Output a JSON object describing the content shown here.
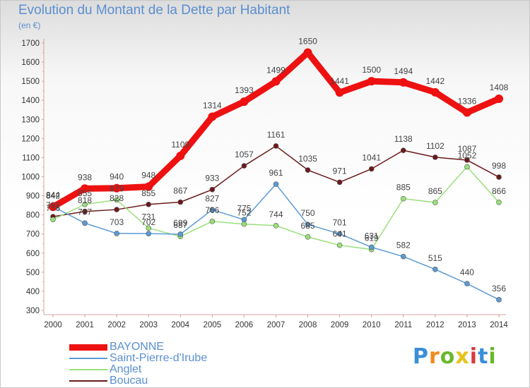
{
  "title": "Evolution du Montant de la Dette par Habitant",
  "subtitle": "(en €)",
  "brand": {
    "text": "Proxiti",
    "colors": [
      "#3a8fd8",
      "#f18a1c",
      "#6ab72d",
      "#e8c21a",
      "#d83a3a",
      "#3a8fd8",
      "#6ab72d"
    ]
  },
  "chart_data": {
    "type": "line",
    "x": [
      "2000",
      "2001",
      "2002",
      "2003",
      "2004",
      "2005",
      "2006",
      "2007",
      "2008",
      "2009",
      "2010",
      "2011",
      "2012",
      "2013",
      "2014"
    ],
    "ylim": [
      300,
      1700
    ],
    "yticks": [
      300,
      400,
      500,
      600,
      700,
      800,
      900,
      1000,
      1100,
      1200,
      1300,
      1400,
      1500,
      1600,
      1700
    ],
    "grid": false,
    "legend_position": "bottom-left",
    "series": [
      {
        "name": "BAYONNE",
        "color": "#ee1111",
        "values": [
          842,
          938,
          940,
          948,
          1109,
          1314,
          1393,
          1499,
          1650,
          1441,
          1500,
          1494,
          1442,
          1336,
          1408
        ]
      },
      {
        "name": "Saint-Pierre-d'Irube",
        "color": "#5b9bd5",
        "values": [
          844,
          757,
          703,
          702,
          699,
          827,
          775,
          961,
          750,
          701,
          631,
          582,
          515,
          440,
          356
        ]
      },
      {
        "name": "Anglet",
        "color": "#99e07a",
        "values": [
          776,
          855,
          879,
          731,
          687,
          766,
          752,
          744,
          685,
          641,
          619,
          885,
          865,
          1052,
          866
        ]
      },
      {
        "name": "Boucau",
        "color": "#6b1a1a",
        "values": [
          791,
          818,
          828,
          855,
          867,
          933,
          1057,
          1161,
          1035,
          971,
          1041,
          1138,
          1102,
          1087,
          998
        ]
      }
    ]
  }
}
